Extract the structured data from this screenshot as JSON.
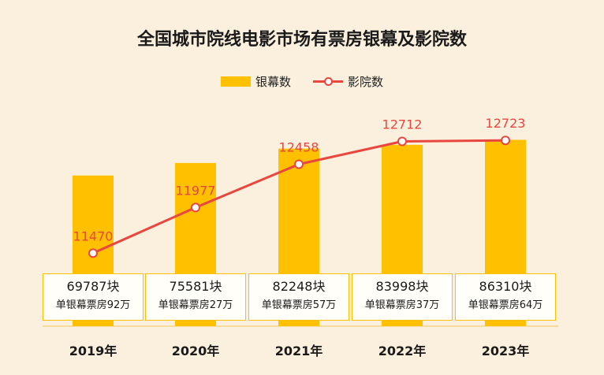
{
  "chart_data": {
    "type": "bar",
    "title": "全国城市院线电影市场有票房银幕及影院数",
    "categories": [
      "2019年",
      "2020年",
      "2021年",
      "2022年",
      "2023年"
    ],
    "series": [
      {
        "name": "银幕数",
        "kind": "bar",
        "values": [
          69787,
          75581,
          82248,
          83998,
          86310
        ],
        "color": "#ffc000"
      },
      {
        "name": "影院数",
        "kind": "line",
        "values": [
          11470,
          11977,
          12458,
          12712,
          12723
        ],
        "color": "#e8463f"
      }
    ],
    "bar_labels": [
      "69787块",
      "75581块",
      "82248块",
      "83998块",
      "86310块"
    ],
    "per_screen_labels": [
      "单银幕票房92万",
      "单银幕票房27万",
      "单银幕票房57万",
      "单银幕票房37万",
      "单银幕票房64万"
    ],
    "line_labels": [
      "11470",
      "11977",
      "12458",
      "12712",
      "12723"
    ],
    "legend": {
      "bar": "银幕数",
      "line": "影院数"
    }
  }
}
